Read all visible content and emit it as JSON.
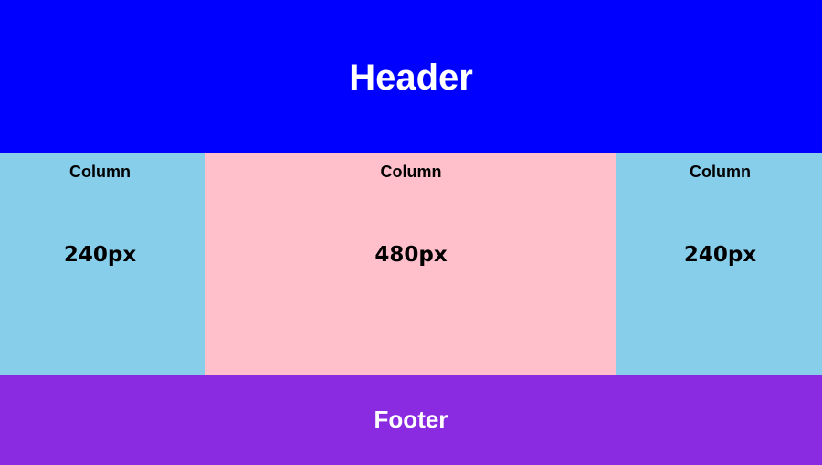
{
  "header": {
    "title": "Header",
    "color": "#0000FF"
  },
  "columns": [
    {
      "label": "Column",
      "size": "240px",
      "color": "#87CEEB"
    },
    {
      "label": "Column",
      "size": "480px",
      "color": "#FFC0CB"
    },
    {
      "label": "Column",
      "size": "240px",
      "color": "#87CEEB"
    }
  ],
  "footer": {
    "title": "Footer",
    "color": "#8A2BE2"
  }
}
